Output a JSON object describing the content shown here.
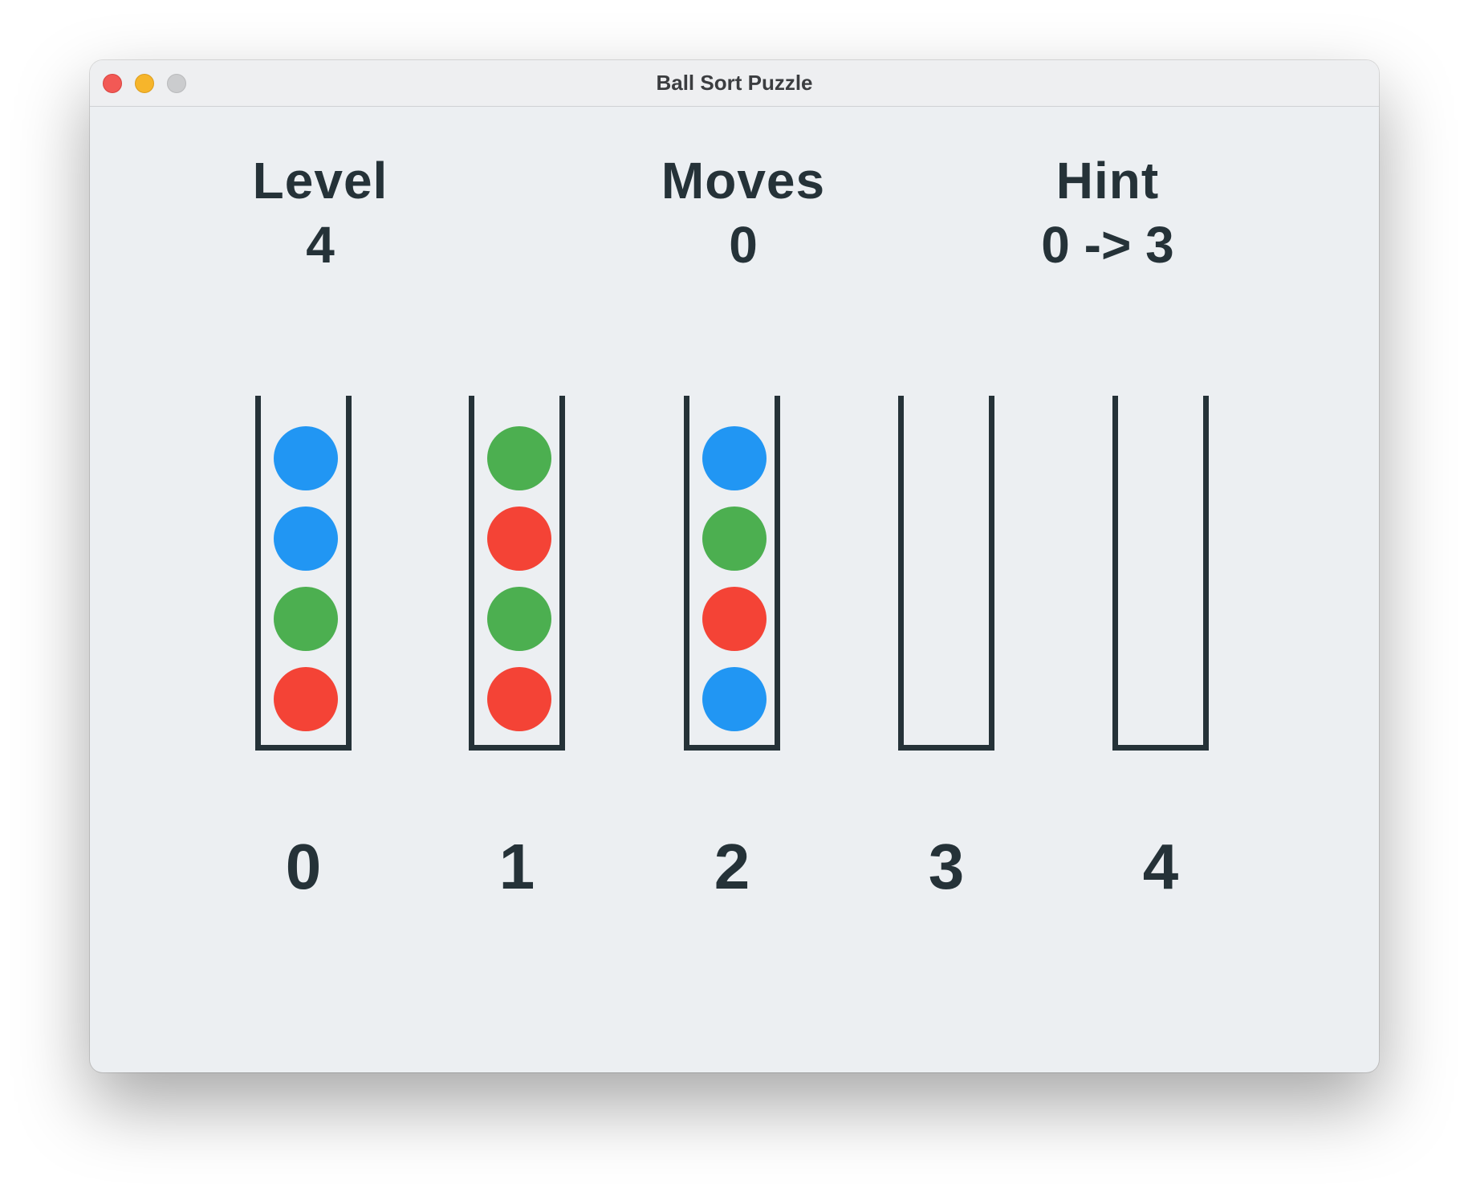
{
  "window": {
    "title": "Ball Sort Puzzle"
  },
  "stats": {
    "level": {
      "label": "Level",
      "value": "4"
    },
    "moves": {
      "label": "Moves",
      "value": "0"
    },
    "hint": {
      "label": "Hint",
      "value": "0 -> 3"
    }
  },
  "colors": {
    "blue": "#2196f3",
    "green": "#4caf50",
    "red": "#f44336",
    "tube": "#253238"
  },
  "tubes": [
    {
      "label": "0",
      "balls_top_to_bottom": [
        "blue",
        "blue",
        "green",
        "red"
      ]
    },
    {
      "label": "1",
      "balls_top_to_bottom": [
        "green",
        "red",
        "green",
        "red"
      ]
    },
    {
      "label": "2",
      "balls_top_to_bottom": [
        "blue",
        "green",
        "red",
        "blue"
      ]
    },
    {
      "label": "3",
      "balls_top_to_bottom": []
    },
    {
      "label": "4",
      "balls_top_to_bottom": []
    }
  ]
}
